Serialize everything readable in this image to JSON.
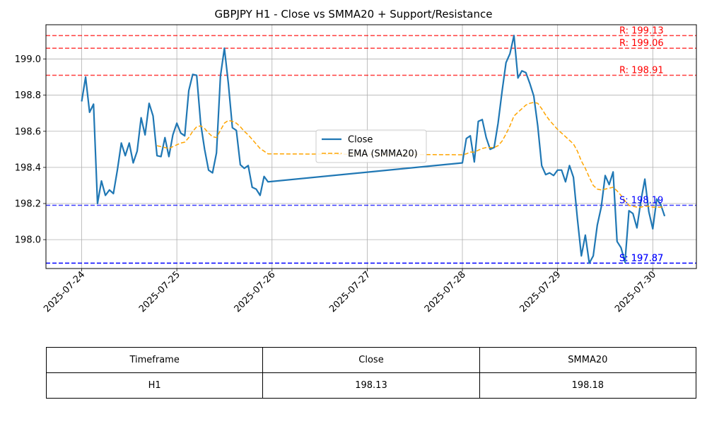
{
  "chart_data": {
    "type": "line",
    "title": "GBPJPY H1 - Close vs SMMA20 + Support/Resistance",
    "xlabel": "",
    "ylabel": "",
    "xlim": [
      "2025-07-23T15:00",
      "2025-07-30T11:00"
    ],
    "ylim": [
      197.84,
      199.19
    ],
    "x_ticks": [
      "2025-07-24",
      "2025-07-25",
      "2025-07-26",
      "2025-07-27",
      "2025-07-28",
      "2025-07-29",
      "2025-07-30"
    ],
    "y_ticks": [
      "198.0",
      "198.2",
      "198.4",
      "198.6",
      "198.8",
      "199.0"
    ],
    "grid": true,
    "legend_position": "center",
    "series": [
      {
        "name": "Close",
        "color": "#1f77b4",
        "style": "solid",
        "points": [
          [
            "2025-07-24T00:00",
            198.765
          ],
          [
            "2025-07-24T01:00",
            198.9
          ],
          [
            "2025-07-24T02:00",
            198.705
          ],
          [
            "2025-07-24T03:00",
            198.75
          ],
          [
            "2025-07-24T04:00",
            198.2
          ],
          [
            "2025-07-24T05:00",
            198.325
          ],
          [
            "2025-07-24T06:00",
            198.245
          ],
          [
            "2025-07-24T07:00",
            198.275
          ],
          [
            "2025-07-24T08:00",
            198.255
          ],
          [
            "2025-07-24T09:00",
            198.385
          ],
          [
            "2025-07-24T10:00",
            198.535
          ],
          [
            "2025-07-24T11:00",
            198.465
          ],
          [
            "2025-07-24T12:00",
            198.535
          ],
          [
            "2025-07-24T13:00",
            198.425
          ],
          [
            "2025-07-24T14:00",
            198.49
          ],
          [
            "2025-07-24T15:00",
            198.675
          ],
          [
            "2025-07-24T16:00",
            198.58
          ],
          [
            "2025-07-24T17:00",
            198.755
          ],
          [
            "2025-07-24T18:00",
            198.685
          ],
          [
            "2025-07-24T19:00",
            198.465
          ],
          [
            "2025-07-24T20:00",
            198.46
          ],
          [
            "2025-07-24T21:00",
            198.565
          ],
          [
            "2025-07-24T22:00",
            198.46
          ],
          [
            "2025-07-24T23:00",
            198.58
          ],
          [
            "2025-07-25T00:00",
            198.645
          ],
          [
            "2025-07-25T01:00",
            198.59
          ],
          [
            "2025-07-25T02:00",
            198.575
          ],
          [
            "2025-07-25T03:00",
            198.825
          ],
          [
            "2025-07-25T04:00",
            198.915
          ],
          [
            "2025-07-25T05:00",
            198.91
          ],
          [
            "2025-07-25T06:00",
            198.645
          ],
          [
            "2025-07-25T07:00",
            198.5
          ],
          [
            "2025-07-25T08:00",
            198.385
          ],
          [
            "2025-07-25T09:00",
            198.37
          ],
          [
            "2025-07-25T10:00",
            198.48
          ],
          [
            "2025-07-25T11:00",
            198.905
          ],
          [
            "2025-07-25T12:00",
            199.06
          ],
          [
            "2025-07-25T13:00",
            198.865
          ],
          [
            "2025-07-25T14:00",
            198.62
          ],
          [
            "2025-07-25T15:00",
            198.605
          ],
          [
            "2025-07-25T16:00",
            198.415
          ],
          [
            "2025-07-25T17:00",
            198.395
          ],
          [
            "2025-07-25T18:00",
            198.41
          ],
          [
            "2025-07-25T19:00",
            198.29
          ],
          [
            "2025-07-25T20:00",
            198.28
          ],
          [
            "2025-07-25T21:00",
            198.245
          ],
          [
            "2025-07-25T22:00",
            198.35
          ],
          [
            "2025-07-25T23:00",
            198.32
          ],
          [
            "2025-07-28T00:00",
            198.425
          ],
          [
            "2025-07-28T01:00",
            198.56
          ],
          [
            "2025-07-28T02:00",
            198.575
          ],
          [
            "2025-07-28T03:00",
            198.43
          ],
          [
            "2025-07-28T04:00",
            198.655
          ],
          [
            "2025-07-28T05:00",
            198.665
          ],
          [
            "2025-07-28T06:00",
            198.565
          ],
          [
            "2025-07-28T07:00",
            198.5
          ],
          [
            "2025-07-28T08:00",
            198.51
          ],
          [
            "2025-07-28T09:00",
            198.645
          ],
          [
            "2025-07-28T10:00",
            198.82
          ],
          [
            "2025-07-28T11:00",
            198.98
          ],
          [
            "2025-07-28T12:00",
            199.03
          ],
          [
            "2025-07-28T13:00",
            199.13
          ],
          [
            "2025-07-28T14:00",
            198.895
          ],
          [
            "2025-07-28T15:00",
            198.935
          ],
          [
            "2025-07-28T16:00",
            198.925
          ],
          [
            "2025-07-28T17:00",
            198.865
          ],
          [
            "2025-07-28T18:00",
            198.795
          ],
          [
            "2025-07-28T19:00",
            198.63
          ],
          [
            "2025-07-28T20:00",
            198.41
          ],
          [
            "2025-07-28T21:00",
            198.36
          ],
          [
            "2025-07-28T22:00",
            198.37
          ],
          [
            "2025-07-28T23:00",
            198.355
          ],
          [
            "2025-07-29T00:00",
            198.385
          ],
          [
            "2025-07-29T01:00",
            198.385
          ],
          [
            "2025-07-29T02:00",
            198.32
          ],
          [
            "2025-07-29T03:00",
            198.41
          ],
          [
            "2025-07-29T04:00",
            198.345
          ],
          [
            "2025-07-29T05:00",
            198.115
          ],
          [
            "2025-07-29T06:00",
            197.91
          ],
          [
            "2025-07-29T07:00",
            198.025
          ],
          [
            "2025-07-29T08:00",
            197.87
          ],
          [
            "2025-07-29T09:00",
            197.91
          ],
          [
            "2025-07-29T10:00",
            198.08
          ],
          [
            "2025-07-29T11:00",
            198.18
          ],
          [
            "2025-07-29T12:00",
            198.355
          ],
          [
            "2025-07-29T13:00",
            198.305
          ],
          [
            "2025-07-29T14:00",
            198.375
          ],
          [
            "2025-07-29T15:00",
            197.99
          ],
          [
            "2025-07-29T16:00",
            197.955
          ],
          [
            "2025-07-29T17:00",
            197.875
          ],
          [
            "2025-07-29T18:00",
            198.16
          ],
          [
            "2025-07-29T19:00",
            198.145
          ],
          [
            "2025-07-29T20:00",
            198.065
          ],
          [
            "2025-07-29T21:00",
            198.215
          ],
          [
            "2025-07-29T22:00",
            198.335
          ],
          [
            "2025-07-29T23:00",
            198.155
          ],
          [
            "2025-07-30T00:00",
            198.06
          ],
          [
            "2025-07-30T01:00",
            198.225
          ],
          [
            "2025-07-30T02:00",
            198.195
          ],
          [
            "2025-07-30T03:00",
            198.13
          ]
        ]
      },
      {
        "name": "EMA (SMMA20)",
        "color": "#ffa500",
        "style": "dashed",
        "points": [
          [
            "2025-07-24T19:00",
            198.52
          ],
          [
            "2025-07-24T20:00",
            198.515
          ],
          [
            "2025-07-24T21:00",
            198.51
          ],
          [
            "2025-07-24T22:00",
            198.505
          ],
          [
            "2025-07-24T23:00",
            198.515
          ],
          [
            "2025-07-25T00:00",
            198.525
          ],
          [
            "2025-07-25T01:00",
            198.535
          ],
          [
            "2025-07-25T02:00",
            198.54
          ],
          [
            "2025-07-25T03:00",
            198.565
          ],
          [
            "2025-07-25T04:00",
            198.6
          ],
          [
            "2025-07-25T05:00",
            198.625
          ],
          [
            "2025-07-25T06:00",
            198.63
          ],
          [
            "2025-07-25T07:00",
            198.615
          ],
          [
            "2025-07-25T08:00",
            198.59
          ],
          [
            "2025-07-25T09:00",
            198.57
          ],
          [
            "2025-07-25T10:00",
            198.565
          ],
          [
            "2025-07-25T11:00",
            198.605
          ],
          [
            "2025-07-25T12:00",
            198.645
          ],
          [
            "2025-07-25T13:00",
            198.66
          ],
          [
            "2025-07-25T14:00",
            198.655
          ],
          [
            "2025-07-25T15:00",
            198.645
          ],
          [
            "2025-07-25T16:00",
            198.625
          ],
          [
            "2025-07-25T17:00",
            198.6
          ],
          [
            "2025-07-25T18:00",
            198.58
          ],
          [
            "2025-07-25T19:00",
            198.555
          ],
          [
            "2025-07-25T20:00",
            198.53
          ],
          [
            "2025-07-25T21:00",
            198.505
          ],
          [
            "2025-07-25T22:00",
            198.49
          ],
          [
            "2025-07-25T23:00",
            198.475
          ],
          [
            "2025-07-28T00:00",
            198.47
          ],
          [
            "2025-07-28T01:00",
            198.475
          ],
          [
            "2025-07-28T02:00",
            198.485
          ],
          [
            "2025-07-28T03:00",
            198.485
          ],
          [
            "2025-07-28T04:00",
            198.495
          ],
          [
            "2025-07-28T05:00",
            198.505
          ],
          [
            "2025-07-28T06:00",
            198.51
          ],
          [
            "2025-07-28T07:00",
            198.51
          ],
          [
            "2025-07-28T08:00",
            198.51
          ],
          [
            "2025-07-28T09:00",
            198.52
          ],
          [
            "2025-07-28T10:00",
            198.545
          ],
          [
            "2025-07-28T11:00",
            198.585
          ],
          [
            "2025-07-28T12:00",
            198.63
          ],
          [
            "2025-07-28T13:00",
            198.685
          ],
          [
            "2025-07-28T14:00",
            198.705
          ],
          [
            "2025-07-28T15:00",
            198.725
          ],
          [
            "2025-07-28T16:00",
            198.745
          ],
          [
            "2025-07-28T17:00",
            198.755
          ],
          [
            "2025-07-28T18:00",
            198.76
          ],
          [
            "2025-07-28T19:00",
            198.755
          ],
          [
            "2025-07-28T20:00",
            198.725
          ],
          [
            "2025-07-28T21:00",
            198.69
          ],
          [
            "2025-07-28T22:00",
            198.66
          ],
          [
            "2025-07-28T23:00",
            198.635
          ],
          [
            "2025-07-29T00:00",
            198.61
          ],
          [
            "2025-07-29T01:00",
            198.59
          ],
          [
            "2025-07-29T02:00",
            198.57
          ],
          [
            "2025-07-29T03:00",
            198.55
          ],
          [
            "2025-07-29T04:00",
            198.53
          ],
          [
            "2025-07-29T05:00",
            198.49
          ],
          [
            "2025-07-29T06:00",
            198.435
          ],
          [
            "2025-07-29T07:00",
            198.395
          ],
          [
            "2025-07-29T08:00",
            198.345
          ],
          [
            "2025-07-29T09:00",
            198.3
          ],
          [
            "2025-07-29T10:00",
            198.28
          ],
          [
            "2025-07-29T11:00",
            198.275
          ],
          [
            "2025-07-29T12:00",
            198.28
          ],
          [
            "2025-07-29T13:00",
            198.285
          ],
          [
            "2025-07-29T14:00",
            198.29
          ],
          [
            "2025-07-29T15:00",
            198.27
          ],
          [
            "2025-07-29T16:00",
            198.245
          ],
          [
            "2025-07-29T17:00",
            198.215
          ],
          [
            "2025-07-29T18:00",
            198.19
          ],
          [
            "2025-07-29T19:00",
            198.185
          ],
          [
            "2025-07-29T20:00",
            198.18
          ],
          [
            "2025-07-29T21:00",
            198.18
          ],
          [
            "2025-07-29T22:00",
            198.185
          ],
          [
            "2025-07-29T23:00",
            198.185
          ],
          [
            "2025-07-30T00:00",
            198.18
          ],
          [
            "2025-07-30T01:00",
            198.18
          ],
          [
            "2025-07-30T02:00",
            198.18
          ],
          [
            "2025-07-30T03:00",
            198.18
          ]
        ]
      }
    ],
    "levels": [
      {
        "kind": "resistance",
        "value": 199.13,
        "label": "R: 199.13",
        "color": "#ff0000"
      },
      {
        "kind": "resistance",
        "value": 199.06,
        "label": "R: 199.06",
        "color": "#ff0000"
      },
      {
        "kind": "resistance",
        "value": 198.91,
        "label": "R: 198.91",
        "color": "#ff0000"
      },
      {
        "kind": "support",
        "value": 198.19,
        "label": "S: 198.19",
        "color": "#0000ff"
      },
      {
        "kind": "support",
        "value": 197.87,
        "label": "S: 197.87",
        "color": "#0000ff"
      },
      {
        "kind": "support",
        "value": 197.87,
        "label": "S: 197.87",
        "color": "#0000ff"
      }
    ],
    "table": {
      "headers": [
        "Timeframe",
        "Close",
        "SMMA20"
      ],
      "rows": [
        [
          "H1",
          "198.13",
          "198.18"
        ]
      ]
    }
  }
}
